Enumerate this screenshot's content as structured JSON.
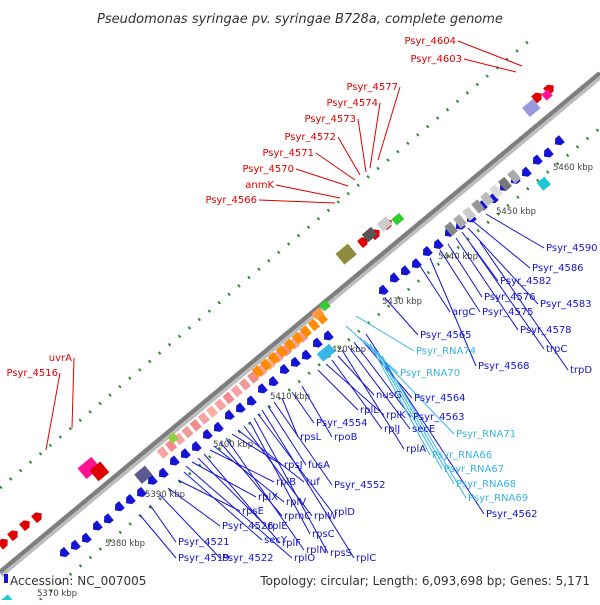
{
  "title": "Pseudomonas syringae pv. syringae B728a, complete genome",
  "footer": {
    "accession": "Accession: NC_007005",
    "summary": "Topology: circular; Length: 6,093,698 bp; Genes: 5,171"
  },
  "colors": {
    "backbone": "#8c8c8c",
    "forward_label": "#e00000",
    "reverse_label": "#1414d2",
    "rna_label": "#35b6e6",
    "ruler_dots": "#2f8f2f"
  },
  "scale": {
    "unit": "kbp",
    "ticks": [
      {
        "text": "5370 kbp",
        "kbp": 5370
      },
      {
        "text": "5380 kbp",
        "kbp": 5380
      },
      {
        "text": "5390 kbp",
        "kbp": 5390
      },
      {
        "text": "5400 kbp",
        "kbp": 5400
      },
      {
        "text": "5410 kbp",
        "kbp": 5410
      },
      {
        "text": "5420 kbp",
        "kbp": 5420
      },
      {
        "text": "5430 kbp",
        "kbp": 5430
      },
      {
        "text": "5440 kbp",
        "kbp": 5440
      },
      {
        "text": "5450 kbp",
        "kbp": 5450
      },
      {
        "text": "5460 kbp",
        "kbp": 5460
      }
    ]
  },
  "forward_labels": [
    "uvrA",
    "Psyr_4516",
    "Psyr_4566",
    "anmK",
    "Psyr_4570",
    "Psyr_4571",
    "Psyr_4572",
    "Psyr_4573",
    "Psyr_4574",
    "Psyr_4577",
    "Psyr_4603",
    "Psyr_4604"
  ],
  "reverse_labels": [
    "Psyr_4519",
    "Psyr_4521",
    "Psyr_4522",
    "Psyr_4526",
    "rpsE",
    "secY",
    "rplO",
    "rplX",
    "rplE",
    "rplF",
    "rplB",
    "rplV",
    "rpmC",
    "rplN",
    "rpsJ",
    "tuf",
    "rplW",
    "rpsC",
    "rpsS",
    "rplD",
    "rplC",
    "fusA",
    "Psyr_4552",
    "rpsL",
    "Psyr_4554",
    "rpoB",
    "rplL",
    "rplK",
    "rplJ",
    "nusG",
    "rplA",
    "secE",
    "Psyr_4563",
    "Psyr_4564",
    "Psyr_4562",
    "Psyr_4565",
    "argC",
    "Psyr_4568",
    "Psyr_4575",
    "Psyr_4576",
    "Psyr_4578",
    "Psyr_4582",
    "Psyr_4583",
    "Psyr_4586",
    "Psyr_4590",
    "trpC",
    "trpD"
  ],
  "rna_labels": [
    "Psyr_RNA74",
    "Psyr_RNA70",
    "Psyr_RNA71",
    "Psyr_RNA66",
    "Psyr_RNA67",
    "Psyr_RNA68",
    "Psyr_RNA69"
  ]
}
